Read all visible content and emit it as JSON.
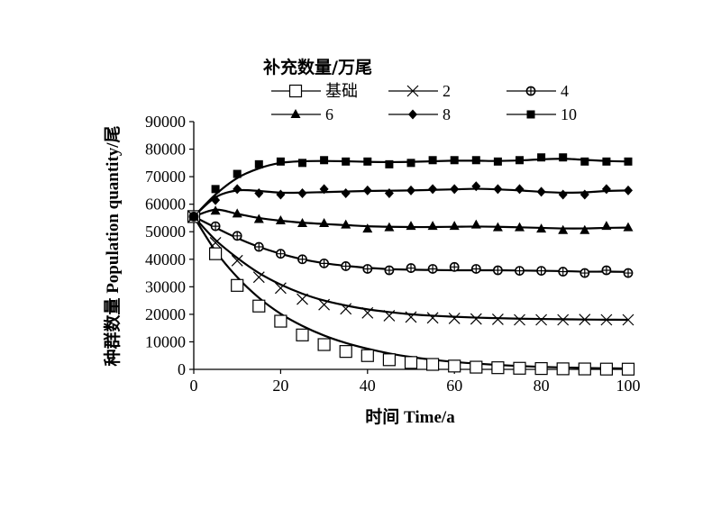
{
  "chart_data": {
    "type": "line",
    "legend_title": "补充数量/万尾",
    "xlabel": "时间 Time/a",
    "ylabel": "种群数量 Population quantity/尾",
    "xlim": [
      0,
      100
    ],
    "ylim": [
      0,
      90000
    ],
    "xticks": [
      "0",
      "20",
      "40",
      "60",
      "80",
      "100"
    ],
    "yticks": [
      "0",
      "10000",
      "20000",
      "30000",
      "40000",
      "50000",
      "60000",
      "70000",
      "80000",
      "90000"
    ],
    "legend_placement": "top",
    "grid": false,
    "x": [
      0,
      5,
      10,
      15,
      20,
      25,
      30,
      35,
      40,
      45,
      50,
      55,
      60,
      65,
      70,
      75,
      80,
      85,
      90,
      95,
      100
    ],
    "series": [
      {
        "name": "基础",
        "marker": "open-square",
        "points": [
          55500,
          42000,
          30500,
          23000,
          17500,
          12500,
          9000,
          6500,
          5000,
          3500,
          2500,
          1800,
          1200,
          800,
          600,
          400,
          300,
          200,
          150,
          100,
          80
        ],
        "fit": [
          55500,
          43000,
          33500,
          26000,
          20200,
          15800,
          12300,
          9600,
          7500,
          5800,
          4500,
          3500,
          2700,
          2100,
          1600,
          1200,
          900,
          700,
          500,
          400,
          300
        ]
      },
      {
        "name": "2",
        "marker": "cross",
        "points": [
          55500,
          46000,
          39500,
          33500,
          29500,
          25500,
          23500,
          22000,
          20500,
          19500,
          19000,
          18700,
          18500,
          18300,
          18200,
          18000,
          18000,
          18000,
          18100,
          18000,
          18000
        ],
        "fit": [
          55500,
          47000,
          40500,
          35000,
          30800,
          27500,
          25000,
          23200,
          21800,
          20800,
          20000,
          19500,
          19100,
          18800,
          18600,
          18400,
          18300,
          18200,
          18100,
          18050,
          18000
        ]
      },
      {
        "name": "4",
        "marker": "circle-cross",
        "points": [
          55500,
          52000,
          48500,
          44500,
          42000,
          40000,
          38500,
          37500,
          36500,
          36000,
          36800,
          36500,
          37200,
          36500,
          36000,
          35800,
          35800,
          35500,
          35000,
          36000,
          35000
        ],
        "fit": [
          55500,
          51500,
          47700,
          44500,
          42000,
          40000,
          38600,
          37600,
          36900,
          36400,
          36200,
          36100,
          36000,
          36000,
          36000,
          35900,
          35800,
          35700,
          35500,
          35500,
          35400
        ]
      },
      {
        "name": "6",
        "marker": "triangle",
        "points": [
          55500,
          57500,
          56500,
          54500,
          54000,
          53000,
          53000,
          52500,
          51000,
          51500,
          52000,
          52000,
          52000,
          52500,
          51500,
          51500,
          51000,
          50500,
          50500,
          52000,
          51500
        ],
        "fit": [
          55500,
          58000,
          56500,
          55000,
          54000,
          53300,
          52800,
          52400,
          52000,
          51800,
          51700,
          51700,
          51800,
          51900,
          51800,
          51600,
          51400,
          51200,
          51200,
          51400,
          51500
        ]
      },
      {
        "name": "8",
        "marker": "diamond",
        "points": [
          55500,
          61500,
          65500,
          64000,
          63500,
          64000,
          65500,
          64000,
          65000,
          64000,
          65000,
          65500,
          65500,
          66500,
          65500,
          65500,
          64500,
          63500,
          63500,
          65500,
          65000
        ],
        "fit": [
          55500,
          62500,
          65000,
          64800,
          64200,
          64200,
          64400,
          64600,
          64800,
          64900,
          65000,
          65200,
          65400,
          65600,
          65400,
          65000,
          64500,
          64200,
          64300,
          64800,
          65000
        ]
      },
      {
        "name": "10",
        "marker": "filled-square",
        "points": [
          55500,
          65500,
          71000,
          74500,
          75500,
          75000,
          76000,
          75500,
          75500,
          74500,
          75000,
          76000,
          76000,
          76000,
          75500,
          76000,
          77000,
          77000,
          75500,
          75500,
          75500
        ],
        "fit": [
          55500,
          63500,
          69500,
          73000,
          75000,
          75600,
          75700,
          75600,
          75400,
          75300,
          75400,
          75600,
          75800,
          75800,
          75700,
          75900,
          76300,
          76500,
          76100,
          75700,
          75500
        ]
      }
    ]
  }
}
